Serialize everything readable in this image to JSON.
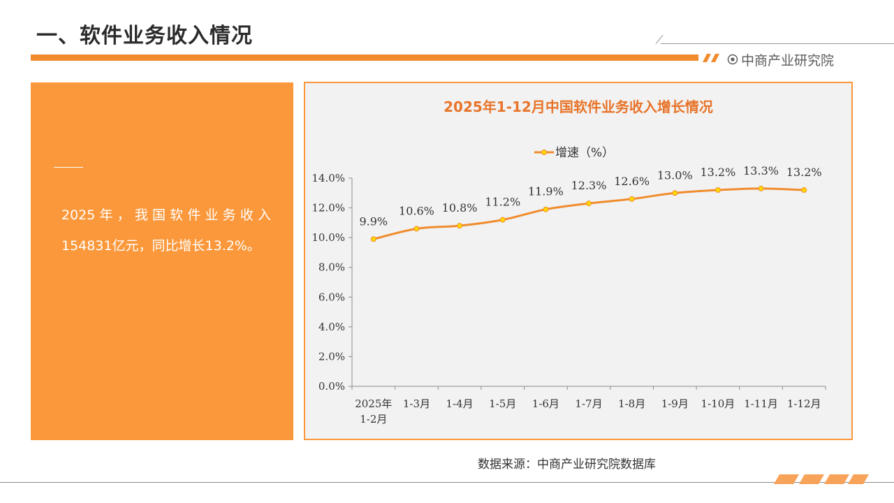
{
  "header": {
    "title": "一、软件业务收入情况",
    "brand": "中商产业研究院"
  },
  "summary": {
    "text": "2025年，我国软件业务收入154831亿元，同比增长13.2%。"
  },
  "source": "数据来源：中商产业研究院数据库",
  "colors": {
    "accent": "#f08c2e",
    "panel": "#fb983b",
    "line": "#f08c2e",
    "marker": "#ffd900",
    "chart_title": "#e8742a"
  },
  "chart_data": {
    "type": "line",
    "title": "2025年1-12月中国软件业务收入增长情况",
    "categories": [
      "2025年\n1-2月",
      "1-3月",
      "1-4月",
      "1-5月",
      "1-6月",
      "1-7月",
      "1-8月",
      "1-9月",
      "1-10月",
      "1-11月",
      "1-12月"
    ],
    "series": [
      {
        "name": "增速（%）",
        "values": [
          9.9,
          10.6,
          10.8,
          11.2,
          11.9,
          12.3,
          12.6,
          13.0,
          13.2,
          13.3,
          13.2
        ],
        "labels": [
          "9.9%",
          "10.6%",
          "10.8%",
          "11.2%",
          "11.9%",
          "12.3%",
          "12.6%",
          "13.0%",
          "13.2%",
          "13.3%",
          "13.2%"
        ]
      }
    ],
    "ylim": [
      0,
      14
    ],
    "yticks": [
      "0.0%",
      "2.0%",
      "4.0%",
      "6.0%",
      "8.0%",
      "10.0%",
      "12.0%",
      "14.0%"
    ],
    "legend_position": "top-center",
    "grid": false,
    "smooth": true
  }
}
